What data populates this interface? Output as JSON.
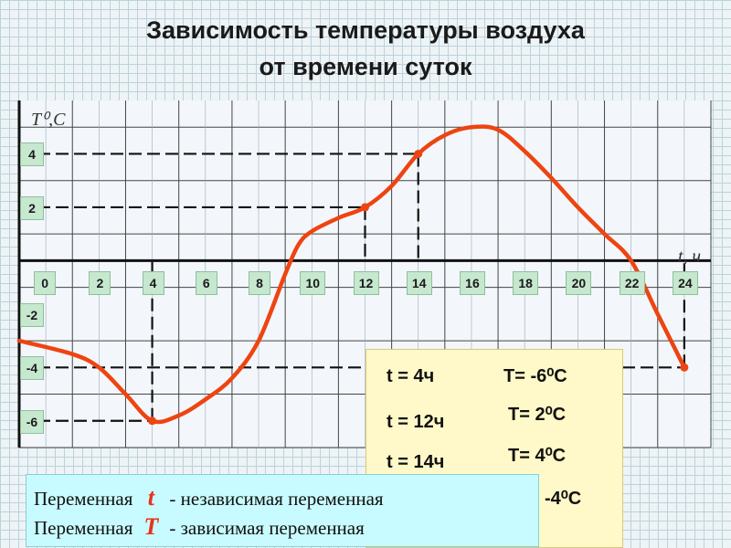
{
  "title_line1": "Зависимость температуры воздуха",
  "title_line2": "от времени суток",
  "chart_data": {
    "type": "line",
    "ylabel": "T⁰,C",
    "xlabel": "t, ч",
    "xlim": [
      -1,
      25
    ],
    "ylim": [
      -7,
      6
    ],
    "x_ticks": [
      "0",
      "2",
      "4",
      "6",
      "8",
      "10",
      "12",
      "14",
      "16",
      "18",
      "20",
      "22",
      "24"
    ],
    "y_ticks": [
      "4",
      "2",
      "-2",
      "-4",
      "-6"
    ],
    "grid": true,
    "line_color": "#ee4411",
    "series": [
      {
        "x": [
          -1,
          1,
          2,
          3,
          4,
          5,
          6,
          7,
          8,
          9,
          9.5,
          10,
          11,
          12,
          13,
          14,
          15,
          16,
          17,
          18,
          19,
          20,
          21,
          22,
          23,
          24
        ],
        "y": [
          -3.0,
          -3.5,
          -4.0,
          -5.0,
          -6.0,
          -5.8,
          -5.2,
          -4.4,
          -3.0,
          -0.5,
          0.6,
          1.1,
          1.6,
          2.0,
          2.8,
          4.0,
          4.7,
          5.0,
          4.9,
          4.1,
          3.1,
          2.0,
          1.0,
          0.0,
          -2.0,
          -4.0
        ]
      }
    ],
    "marked_points": [
      {
        "x": 4,
        "y": -6
      },
      {
        "x": 12,
        "y": 2
      },
      {
        "x": 14,
        "y": 4
      },
      {
        "x": 24,
        "y": -4
      }
    ]
  },
  "table": {
    "rows": [
      {
        "t": "t = 4ч",
        "T": "T= -6⁰C"
      },
      {
        "t": "t = 12ч",
        "T": "T= 2⁰C"
      },
      {
        "t": "t = 14ч",
        "T": "T= 4⁰C"
      },
      {
        "t": "",
        "T": "-4⁰C"
      }
    ]
  },
  "legend_box": {
    "line1_prefix": "Переменная",
    "line1_symbol": "t",
    "line1_text": "-  независимая переменная",
    "line2_prefix": "Переменная",
    "line2_symbol": "T",
    "line2_text": "-  зависимая переменная"
  }
}
